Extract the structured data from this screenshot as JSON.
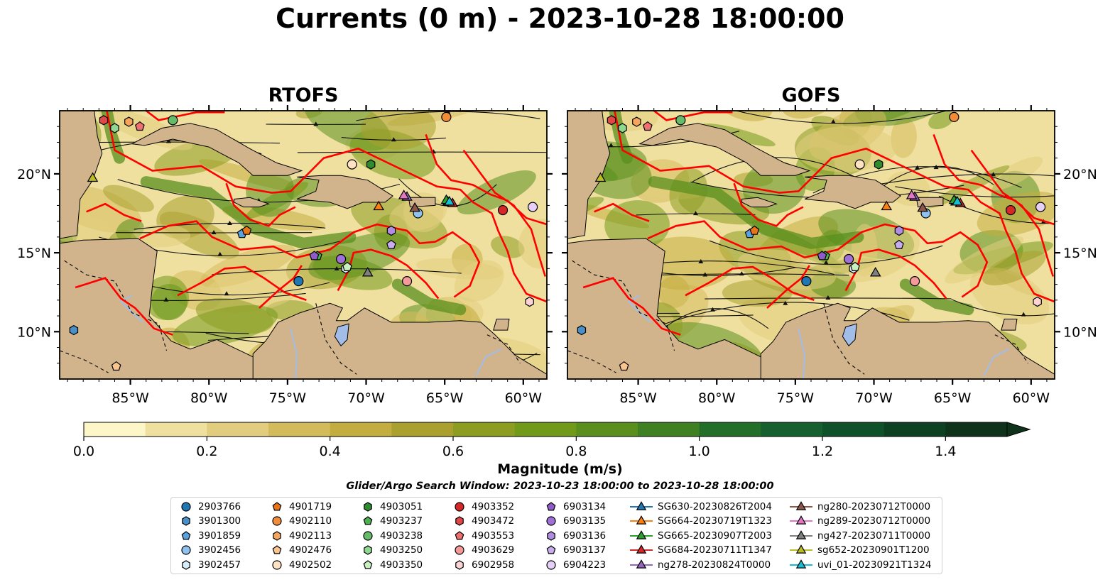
{
  "figure": {
    "title": "Currents (0 m) - 2023-10-28 18:00:00",
    "panels": [
      {
        "id": "rtofs",
        "title": "RTOFS"
      },
      {
        "id": "gofs",
        "title": "GOFS"
      }
    ],
    "lon_ticks": [
      "85°W",
      "80°W",
      "75°W",
      "70°W",
      "65°W",
      "60°W"
    ],
    "lat_ticks": [
      "20°N",
      "15°N",
      "10°N"
    ],
    "colorbar": {
      "label": "Magnitude (m/s)",
      "ticks": [
        "0.0",
        "0.2",
        "0.4",
        "0.6",
        "0.8",
        "1.0",
        "1.2",
        "1.4"
      ],
      "min": 0.0,
      "max": 1.5,
      "step": 0.1,
      "colors": [
        "#fdf6c6",
        "#f0e0a0",
        "#e2cd7e",
        "#d3bb5c",
        "#c4ad40",
        "#aaa030",
        "#8d9d22",
        "#729a1a",
        "#5a8f1e",
        "#3f8122",
        "#236f2a",
        "#15602e",
        "#0f5128",
        "#0e4121",
        "#0f321b"
      ],
      "extend": "max"
    },
    "map_colors": {
      "land": "#d2b48c",
      "lake": "#a2bde8",
      "eez": "#ff0000"
    },
    "search_window": "Glider/Argo Search Window: 2023-10-23 18:00:00 to 2023-10-28 18:00:00"
  },
  "chart_data": {
    "type": "heatmap",
    "xlim": [
      -89.5,
      -58.5
    ],
    "ylim": [
      7.0,
      24.0
    ],
    "platforms": [
      {
        "id": "2903766",
        "marker": "circle",
        "color": "#1f77b4",
        "lon": -74.3,
        "lat": 13.2
      },
      {
        "id": "3901300",
        "marker": "hexagon",
        "color": "#4a90c8",
        "lon": -88.6,
        "lat": 10.1
      },
      {
        "id": "3901859",
        "marker": "pentagon",
        "color": "#5ba3e0",
        "lon": -77.9,
        "lat": 16.2
      },
      {
        "id": "3902456",
        "marker": "circle",
        "color": "#8fc2ee",
        "lon": -66.7,
        "lat": 17.5
      },
      {
        "id": "3902457",
        "marker": "hexagon",
        "color": "#d6ecfb",
        "lon": -71.3,
        "lat": 14.0
      },
      {
        "id": "4901719",
        "marker": "pentagon",
        "color": "#e8751a",
        "lon": -77.6,
        "lat": 16.4
      },
      {
        "id": "4902110",
        "marker": "circle",
        "color": "#f28c38",
        "lon": -64.9,
        "lat": 23.6
      },
      {
        "id": "4902113",
        "marker": "hexagon",
        "color": "#f5a55e",
        "lon": -85.1,
        "lat": 23.3
      },
      {
        "id": "4902476",
        "marker": "pentagon",
        "color": "#f9c48d",
        "lon": -85.9,
        "lat": 7.8
      },
      {
        "id": "4902502",
        "marker": "circle",
        "color": "#fde3c4",
        "lon": -70.9,
        "lat": 20.6
      },
      {
        "id": "4903051",
        "marker": "hexagon",
        "color": "#2e8b2e",
        "lon": -69.7,
        "lat": 20.6
      },
      {
        "id": "4903237",
        "marker": "pentagon",
        "color": "#4caf50",
        "lon": -73.1,
        "lat": 14.8
      },
      {
        "id": "4903238",
        "marker": "circle",
        "color": "#66bb6a",
        "lon": -82.3,
        "lat": 23.4
      },
      {
        "id": "4903250",
        "marker": "hexagon",
        "color": "#90d890",
        "lon": -86.0,
        "lat": 22.9
      },
      {
        "id": "4903350",
        "marker": "pentagon",
        "color": "#c8f0c0",
        "lon": -71.2,
        "lat": 14.1
      },
      {
        "id": "4903352",
        "marker": "circle",
        "color": "#d62728",
        "lon": -61.3,
        "lat": 17.7
      },
      {
        "id": "4903472",
        "marker": "hexagon",
        "color": "#e04848",
        "lon": -86.7,
        "lat": 23.4
      },
      {
        "id": "4903553",
        "marker": "pentagon",
        "color": "#f07070",
        "lon": -84.4,
        "lat": 23.0
      },
      {
        "id": "4903629",
        "marker": "circle",
        "color": "#f49a9a",
        "lon": -67.4,
        "lat": 13.2
      },
      {
        "id": "6902958",
        "marker": "hexagon",
        "color": "#fcd4d4",
        "lon": -59.6,
        "lat": 11.9
      },
      {
        "id": "6903134",
        "marker": "pentagon",
        "color": "#8e5cc8",
        "lon": -73.3,
        "lat": 14.8
      },
      {
        "id": "6903135",
        "marker": "circle",
        "color": "#9f70d6",
        "lon": -71.6,
        "lat": 14.6
      },
      {
        "id": "6903136",
        "marker": "hexagon",
        "color": "#b08de0",
        "lon": -68.4,
        "lat": 16.4
      },
      {
        "id": "6903137",
        "marker": "pentagon",
        "color": "#c7adeb",
        "lon": -68.4,
        "lat": 15.5
      },
      {
        "id": "6904223",
        "marker": "circle",
        "color": "#e6d0f7",
        "lon": -59.4,
        "lat": 17.9
      },
      {
        "id": "SG630-20230826T2004",
        "marker": "triangle",
        "color": "#1f77b4",
        "lon": -64.8,
        "lat": 18.2
      },
      {
        "id": "SG664-20230719T1323",
        "marker": "triangle",
        "color": "#ff7f0e",
        "lon": -69.2,
        "lat": 17.9
      },
      {
        "id": "SG665-20230907T2003",
        "marker": "triangle",
        "color": "#2ca02c",
        "lon": -64.9,
        "lat": 18.3
      },
      {
        "id": "SG684-20230711T1347",
        "marker": "triangle",
        "color": "#d62728",
        "lon": -64.5,
        "lat": 18.1
      },
      {
        "id": "ng278-20230824T0000",
        "marker": "triangle",
        "color": "#9467bd",
        "lon": -67.4,
        "lat": 18.5
      },
      {
        "id": "ng280-20230712T0000",
        "marker": "triangle",
        "color": "#8c564b",
        "lon": -66.9,
        "lat": 17.8
      },
      {
        "id": "ng289-20230712T0000",
        "marker": "triangle",
        "color": "#e377c2",
        "lon": -67.6,
        "lat": 18.6
      },
      {
        "id": "ng427-20230711T0000",
        "marker": "triangle",
        "color": "#7f7f7f",
        "lon": -69.9,
        "lat": 13.7
      },
      {
        "id": "sg652-20230901T1200",
        "marker": "triangle",
        "color": "#bcbd22",
        "lon": -87.4,
        "lat": 19.7
      },
      {
        "id": "uvi_01-20230921T1324",
        "marker": "triangle",
        "color": "#17becf",
        "lon": -64.7,
        "lat": 18.2
      }
    ]
  }
}
